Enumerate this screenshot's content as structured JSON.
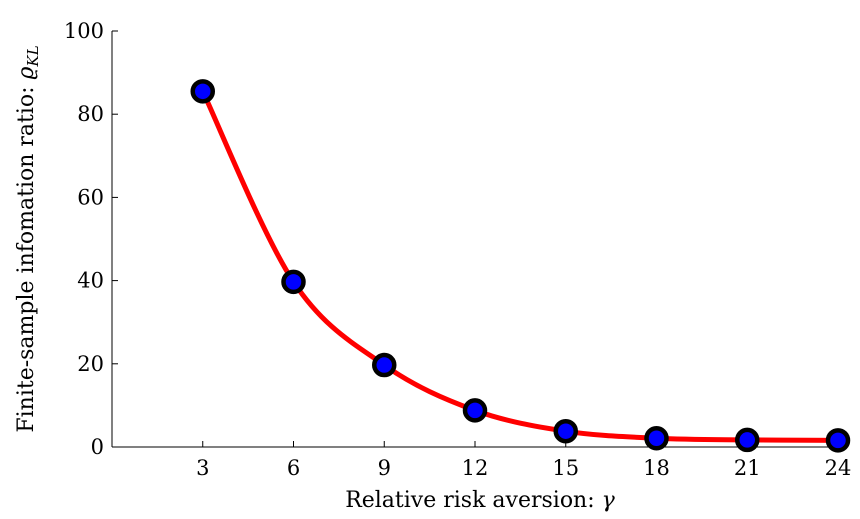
{
  "chart_data": {
    "type": "line",
    "x": [
      3,
      6,
      9,
      12,
      15,
      18,
      21,
      24
    ],
    "series": [
      {
        "values": [
          85.5,
          39.7,
          19.7,
          8.8,
          3.8,
          2.1,
          1.7,
          1.6
        ],
        "line_color": "#ff0000",
        "marker_fill": "#0000ff",
        "marker_edge": "#000000"
      }
    ],
    "xticks": [
      "3",
      "6",
      "9",
      "12",
      "15",
      "18",
      "21",
      "24"
    ],
    "yticks": [
      "0",
      "20",
      "40",
      "60",
      "80",
      "100"
    ],
    "xlim": [
      0,
      24
    ],
    "ylim": [
      0,
      100
    ],
    "xlabel_text": "Relative risk aversion: ",
    "xlabel_math": "γ",
    "ylabel_text": "Finite-sample infomation ratio: ",
    "ylabel_math": "ϱ",
    "ylabel_sub": "KL",
    "grid": false,
    "legend": "none"
  }
}
